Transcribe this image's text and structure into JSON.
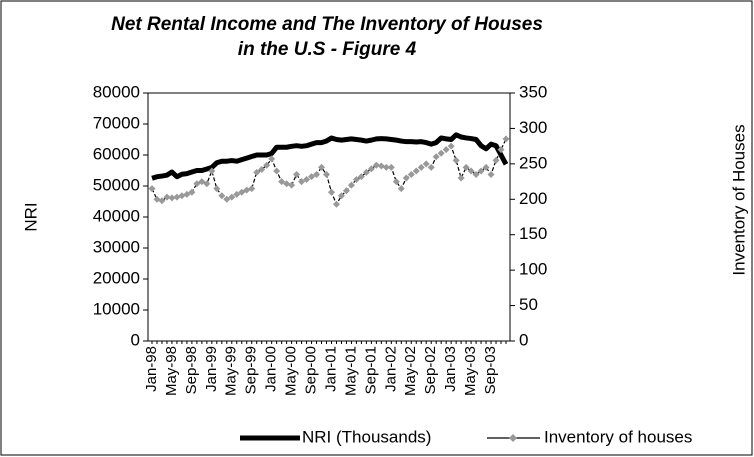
{
  "chart_data": {
    "type": "line",
    "title": "Net Rental Income and The Inventory of Houses in the U.S - Figure 4",
    "ylabel": "NRI",
    "y2label": "Inventory of Houses",
    "categories": [
      "Jan-98",
      null,
      null,
      null,
      "May-98",
      null,
      null,
      null,
      "Sep-98",
      null,
      null,
      null,
      "Jan-99",
      null,
      null,
      null,
      "May-99",
      null,
      null,
      null,
      "Sep-99",
      null,
      null,
      null,
      "Jan-00",
      null,
      null,
      null,
      "May-00",
      null,
      null,
      null,
      "Sep-00",
      null,
      null,
      null,
      "Jan-01",
      null,
      null,
      null,
      "May-01",
      null,
      null,
      null,
      "Sep-01",
      null,
      null,
      null,
      "Jan-02",
      null,
      null,
      null,
      "May-02",
      null,
      null,
      null,
      "Sep-02",
      null,
      null,
      null,
      "Jan-03",
      null,
      null,
      null,
      "May-03",
      null,
      null,
      null,
      "Sep-03",
      null,
      null,
      null
    ],
    "series": [
      {
        "name": "NRI (Thousands)",
        "color": "#000000",
        "values": [
          52500,
          53000,
          53200,
          53500,
          54500,
          53000,
          53800,
          54000,
          54500,
          55000,
          55000,
          55500,
          56000,
          57500,
          58000,
          58000,
          58200,
          58000,
          58500,
          59000,
          59500,
          60000,
          60000,
          60000,
          60500,
          62500,
          62500,
          62500,
          62800,
          63000,
          62800,
          63000,
          63500,
          64000,
          64000,
          64500,
          65500,
          65000,
          64800,
          65000,
          65200,
          65000,
          64800,
          64500,
          64800,
          65200,
          65300,
          65200,
          65000,
          64800,
          64500,
          64300,
          64300,
          64200,
          64300,
          64000,
          63500,
          64000,
          65500,
          65200,
          65000,
          66500,
          65800,
          65500,
          65300,
          65000,
          63000,
          62000,
          63500,
          63000,
          60000,
          57000
        ]
      },
      {
        "name": "Inventory of houses",
        "color": "#999999",
        "axis": "y2",
        "values": [
          215,
          200,
          198,
          203,
          202,
          203,
          205,
          207,
          210,
          222,
          225,
          222,
          240,
          215,
          205,
          200,
          203,
          207,
          210,
          213,
          215,
          238,
          242,
          248,
          257,
          240,
          225,
          222,
          220,
          235,
          225,
          228,
          232,
          235,
          245,
          235,
          210,
          193,
          205,
          212,
          220,
          228,
          232,
          238,
          243,
          248,
          247,
          245,
          245,
          225,
          215,
          230,
          235,
          240,
          245,
          250,
          245,
          260,
          265,
          270,
          275,
          255,
          230,
          245,
          240,
          235,
          240,
          245,
          235,
          255,
          270,
          285
        ]
      }
    ],
    "ylim": [
      0,
      80000
    ],
    "yticks": [
      0,
      10000,
      20000,
      30000,
      40000,
      50000,
      60000,
      70000,
      80000
    ],
    "y2lim": [
      0,
      350
    ],
    "y2ticks": [
      0,
      50,
      100,
      150,
      200,
      250,
      300,
      350
    ],
    "legend": "bottom"
  }
}
